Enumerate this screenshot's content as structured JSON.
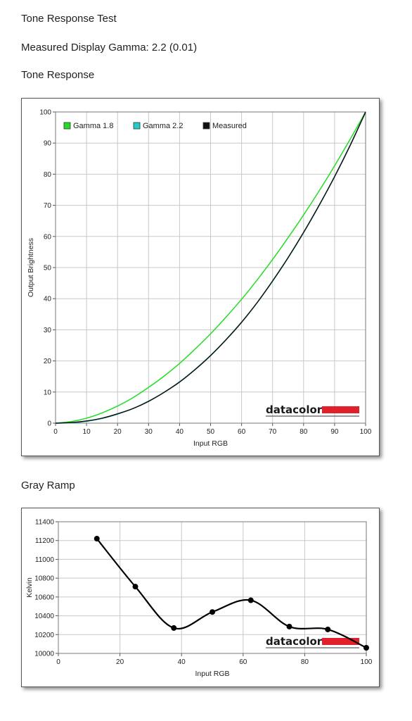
{
  "page": {
    "title": "Tone Response Test",
    "measured_gamma": "Measured Display Gamma: 2.2 (0.01)",
    "tone_section": "Tone Response",
    "gray_section": "Gray Ramp"
  },
  "logo": {
    "text": "datacolor",
    "bar_color": "#e0202a"
  },
  "chart_data": [
    {
      "type": "line",
      "xlabel": "Input RGB",
      "ylabel": "Output Brightness",
      "xlim": [
        0,
        100
      ],
      "ylim": [
        0,
        100
      ],
      "xticks": [
        "0",
        "10",
        "20",
        "30",
        "40",
        "50",
        "60",
        "70",
        "80",
        "90",
        "100"
      ],
      "yticks": [
        "0",
        "10",
        "20",
        "30",
        "40",
        "50",
        "60",
        "70",
        "80",
        "90",
        "100"
      ],
      "grid": true,
      "legend": "top-left",
      "series": [
        {
          "name": "Gamma 1.8",
          "color": "#22dd22",
          "x": [
            0,
            5,
            10,
            15,
            20,
            25,
            30,
            35,
            40,
            45,
            50,
            55,
            60,
            65,
            70,
            75,
            80,
            85,
            90,
            95,
            100
          ],
          "y": [
            0,
            0.5,
            1.6,
            3.3,
            5.5,
            8.2,
            11.5,
            15.1,
            19.2,
            23.8,
            28.7,
            34.1,
            39.8,
            46.0,
            52.6,
            59.6,
            66.9,
            74.6,
            82.7,
            91.2,
            100
          ]
        },
        {
          "name": "Gamma 2.2",
          "color": "#22cccc",
          "x": [
            0,
            5,
            10,
            15,
            20,
            25,
            30,
            35,
            40,
            45,
            50,
            55,
            60,
            65,
            70,
            75,
            80,
            85,
            90,
            95,
            100
          ],
          "y": [
            0,
            0.1,
            0.6,
            1.5,
            2.9,
            4.7,
            7.1,
            9.9,
            13.3,
            17.3,
            21.8,
            26.9,
            32.5,
            38.7,
            45.6,
            53.1,
            61.2,
            69.9,
            79.3,
            89.3,
            100
          ]
        },
        {
          "name": "Measured",
          "color": "#111111",
          "x": [
            0,
            5,
            10,
            15,
            20,
            25,
            30,
            35,
            40,
            45,
            50,
            55,
            60,
            65,
            70,
            75,
            80,
            85,
            90,
            95,
            100
          ],
          "y": [
            0,
            0.2,
            0.7,
            1.6,
            3.0,
            4.7,
            7.0,
            9.9,
            13.2,
            17.2,
            21.7,
            26.8,
            32.4,
            38.7,
            45.7,
            53.2,
            61.3,
            70.0,
            79.2,
            89.2,
            100
          ]
        }
      ]
    },
    {
      "type": "line",
      "xlabel": "Input RGB",
      "ylabel": "Kelvin",
      "xlim": [
        0,
        100
      ],
      "ylim": [
        10000,
        11400
      ],
      "xticks": [
        "0",
        "20",
        "40",
        "60",
        "80",
        "100"
      ],
      "yticks": [
        "10000",
        "10200",
        "10400",
        "10600",
        "10800",
        "11000",
        "11200",
        "11400"
      ],
      "grid": true,
      "series": [
        {
          "color": "#000000",
          "x": [
            12.5,
            25,
            37.5,
            50,
            62.5,
            75,
            87.5,
            100
          ],
          "y": [
            11220,
            10710,
            10270,
            10440,
            10565,
            10285,
            10255,
            10060
          ]
        }
      ]
    }
  ]
}
